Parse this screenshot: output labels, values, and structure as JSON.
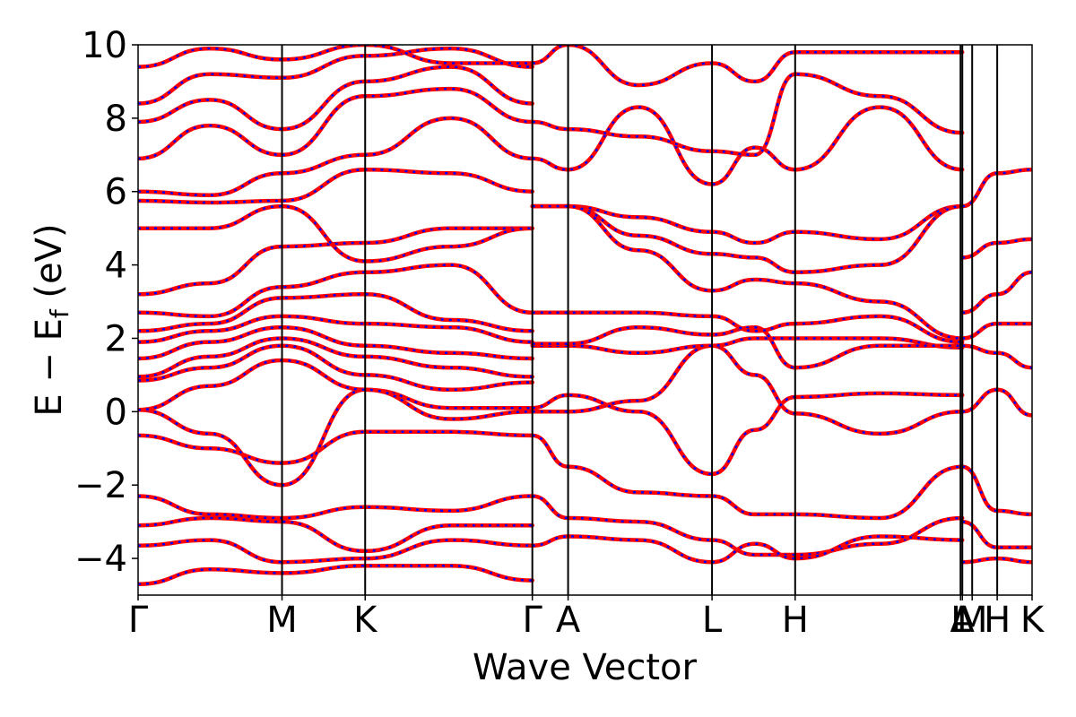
{
  "chart_data": {
    "type": "line",
    "title": "",
    "xlabel": "Wave Vector",
    "ylabel": "E − E",
    "ylabel_subscript": "f",
    "ylabel_unit": " (eV)",
    "ylim": [
      -5,
      10
    ],
    "yticks": [
      10,
      8,
      6,
      4,
      2,
      0,
      -2,
      -4
    ],
    "ytick_labels": [
      "10",
      "8",
      "6",
      "4",
      "2",
      "0",
      "−2",
      "−4"
    ],
    "xlim": [
      0,
      1
    ],
    "high_symmetry_points": [
      {
        "label": "Γ",
        "x": 0.0
      },
      {
        "label": "M",
        "x": 0.161
      },
      {
        "label": "K",
        "x": 0.254
      },
      {
        "label": "Γ",
        "x": 0.441
      },
      {
        "label": "A",
        "x": 0.481
      },
      {
        "label": "L",
        "x": 0.642
      },
      {
        "label": "H",
        "x": 0.735
      },
      {
        "label": "A",
        "x": 0.922
      },
      {
        "label": "L",
        "x": 0.92
      },
      {
        "label": "M",
        "x": 0.933
      },
      {
        "label": "H",
        "x": 0.961
      },
      {
        "label": "K",
        "x": 1.0
      }
    ],
    "grid": false,
    "legend": "none",
    "series_style": [
      {
        "color": "#ff0000",
        "style": "solid"
      },
      {
        "color": "#0000ff",
        "style": "dashed"
      }
    ],
    "bands": [
      [
        [
          0.0,
          -0.65
        ],
        [
          0.08,
          -1.0
        ],
        [
          0.161,
          -1.4
        ],
        [
          0.254,
          -0.55
        ],
        [
          0.35,
          -0.55
        ],
        [
          0.441,
          -0.65
        ]
      ],
      [
        [
          0.0,
          0.05
        ],
        [
          0.08,
          -0.6
        ],
        [
          0.161,
          -2.0
        ],
        [
          0.254,
          0.6
        ],
        [
          0.35,
          0.1
        ],
        [
          0.441,
          0.1
        ]
      ],
      [
        [
          0.0,
          0.05
        ],
        [
          0.08,
          0.7
        ],
        [
          0.161,
          1.4
        ],
        [
          0.254,
          0.6
        ],
        [
          0.35,
          -0.2
        ],
        [
          0.441,
          0.0
        ]
      ],
      [
        [
          0.0,
          0.85
        ],
        [
          0.08,
          1.2
        ],
        [
          0.161,
          1.8
        ],
        [
          0.254,
          1.0
        ],
        [
          0.35,
          0.6
        ],
        [
          0.441,
          0.8
        ]
      ],
      [
        [
          0.0,
          0.95
        ],
        [
          0.08,
          1.5
        ],
        [
          0.161,
          2.0
        ],
        [
          0.254,
          1.5
        ],
        [
          0.35,
          1.2
        ],
        [
          0.441,
          0.95
        ]
      ],
      [
        [
          0.0,
          1.45
        ],
        [
          0.08,
          1.9
        ],
        [
          0.161,
          2.3
        ],
        [
          0.254,
          1.8
        ],
        [
          0.35,
          1.6
        ],
        [
          0.441,
          1.45
        ]
      ],
      [
        [
          0.0,
          1.9
        ],
        [
          0.08,
          2.2
        ],
        [
          0.161,
          2.6
        ],
        [
          0.254,
          2.4
        ],
        [
          0.35,
          2.3
        ],
        [
          0.441,
          1.9
        ]
      ],
      [
        [
          0.0,
          2.2
        ],
        [
          0.08,
          2.4
        ],
        [
          0.161,
          3.1
        ],
        [
          0.254,
          3.2
        ],
        [
          0.35,
          2.5
        ],
        [
          0.441,
          2.2
        ]
      ],
      [
        [
          0.0,
          2.7
        ],
        [
          0.08,
          2.6
        ],
        [
          0.161,
          3.4
        ],
        [
          0.254,
          3.8
        ],
        [
          0.35,
          4.0
        ],
        [
          0.441,
          2.7
        ]
      ],
      [
        [
          0.0,
          3.2
        ],
        [
          0.08,
          3.5
        ],
        [
          0.161,
          4.5
        ],
        [
          0.254,
          4.6
        ],
        [
          0.35,
          5.0
        ],
        [
          0.441,
          5.0
        ]
      ],
      [
        [
          0.0,
          5.0
        ],
        [
          0.08,
          5.0
        ],
        [
          0.161,
          5.6
        ],
        [
          0.254,
          4.1
        ],
        [
          0.35,
          4.5
        ],
        [
          0.441,
          5.0
        ]
      ],
      [
        [
          0.0,
          5.75
        ],
        [
          0.08,
          5.7
        ],
        [
          0.161,
          5.75
        ],
        [
          0.254,
          6.6
        ],
        [
          0.35,
          6.5
        ],
        [
          0.441,
          6.0
        ]
      ],
      [
        [
          0.0,
          6.0
        ],
        [
          0.08,
          5.9
        ],
        [
          0.161,
          6.5
        ],
        [
          0.254,
          7.0
        ],
        [
          0.35,
          8.0
        ],
        [
          0.441,
          6.9
        ]
      ],
      [
        [
          0.0,
          6.9
        ],
        [
          0.08,
          7.8
        ],
        [
          0.161,
          7.0
        ],
        [
          0.254,
          8.6
        ],
        [
          0.35,
          8.8
        ],
        [
          0.441,
          7.9
        ]
      ],
      [
        [
          0.0,
          7.9
        ],
        [
          0.08,
          8.5
        ],
        [
          0.161,
          7.7
        ],
        [
          0.254,
          9.0
        ],
        [
          0.35,
          9.4
        ],
        [
          0.441,
          8.4
        ]
      ],
      [
        [
          0.0,
          8.4
        ],
        [
          0.08,
          9.2
        ],
        [
          0.161,
          9.1
        ],
        [
          0.254,
          9.7
        ],
        [
          0.35,
          9.9
        ],
        [
          0.441,
          9.4
        ]
      ],
      [
        [
          0.0,
          9.4
        ],
        [
          0.08,
          9.9
        ],
        [
          0.161,
          9.6
        ],
        [
          0.254,
          10.0
        ],
        [
          0.35,
          9.5
        ],
        [
          0.441,
          9.5
        ]
      ],
      [
        [
          0.0,
          -2.3
        ],
        [
          0.08,
          -2.8
        ],
        [
          0.161,
          -2.9
        ],
        [
          0.254,
          -2.6
        ],
        [
          0.35,
          -2.7
        ],
        [
          0.441,
          -2.3
        ]
      ],
      [
        [
          0.0,
          -3.1
        ],
        [
          0.08,
          -2.9
        ],
        [
          0.161,
          -3.0
        ],
        [
          0.254,
          -3.8
        ],
        [
          0.35,
          -3.1
        ],
        [
          0.441,
          -3.1
        ]
      ],
      [
        [
          0.0,
          -3.65
        ],
        [
          0.08,
          -3.5
        ],
        [
          0.161,
          -4.1
        ],
        [
          0.254,
          -4.0
        ],
        [
          0.35,
          -3.5
        ],
        [
          0.441,
          -3.65
        ]
      ],
      [
        [
          0.0,
          -4.7
        ],
        [
          0.08,
          -4.3
        ],
        [
          0.161,
          -4.4
        ],
        [
          0.254,
          -4.2
        ],
        [
          0.35,
          -4.2
        ],
        [
          0.441,
          -4.6
        ]
      ],
      [
        [
          0.441,
          0.0
        ],
        [
          0.481,
          0.0
        ],
        [
          0.56,
          0.3
        ],
        [
          0.642,
          1.8
        ],
        [
          0.69,
          1.0
        ],
        [
          0.735,
          -0.05
        ],
        [
          0.83,
          -0.6
        ],
        [
          0.922,
          0.0
        ]
      ],
      [
        [
          0.441,
          0.1
        ],
        [
          0.481,
          0.45
        ],
        [
          0.56,
          0.0
        ],
        [
          0.642,
          -1.7
        ],
        [
          0.69,
          -0.5
        ],
        [
          0.735,
          0.4
        ],
        [
          0.83,
          0.5
        ],
        [
          0.922,
          0.45
        ]
      ],
      [
        [
          0.441,
          1.8
        ],
        [
          0.481,
          1.8
        ],
        [
          0.56,
          1.6
        ],
        [
          0.642,
          1.8
        ],
        [
          0.69,
          2.0
        ],
        [
          0.735,
          2.0
        ],
        [
          0.83,
          2.0
        ],
        [
          0.922,
          1.75
        ]
      ],
      [
        [
          0.441,
          1.85
        ],
        [
          0.481,
          1.85
        ],
        [
          0.56,
          2.3
        ],
        [
          0.642,
          2.1
        ],
        [
          0.69,
          2.3
        ],
        [
          0.735,
          1.2
        ],
        [
          0.83,
          1.8
        ],
        [
          0.922,
          1.8
        ]
      ],
      [
        [
          0.441,
          2.7
        ],
        [
          0.481,
          2.7
        ],
        [
          0.56,
          2.7
        ],
        [
          0.642,
          2.6
        ],
        [
          0.69,
          2.2
        ],
        [
          0.735,
          2.4
        ],
        [
          0.83,
          2.6
        ],
        [
          0.922,
          1.9
        ]
      ],
      [
        [
          0.441,
          5.6
        ],
        [
          0.481,
          5.6
        ],
        [
          0.56,
          5.3
        ],
        [
          0.642,
          4.9
        ],
        [
          0.69,
          4.6
        ],
        [
          0.735,
          4.9
        ],
        [
          0.83,
          4.7
        ],
        [
          0.922,
          5.6
        ]
      ],
      [
        [
          0.441,
          5.6
        ],
        [
          0.481,
          5.6
        ],
        [
          0.56,
          4.8
        ],
        [
          0.642,
          4.3
        ],
        [
          0.69,
          4.2
        ],
        [
          0.735,
          3.8
        ],
        [
          0.83,
          4.0
        ],
        [
          0.922,
          5.6
        ]
      ],
      [
        [
          0.441,
          5.6
        ],
        [
          0.481,
          5.6
        ],
        [
          0.56,
          4.4
        ],
        [
          0.642,
          3.3
        ],
        [
          0.69,
          3.6
        ],
        [
          0.735,
          3.5
        ],
        [
          0.83,
          3.0
        ],
        [
          0.922,
          2.0
        ]
      ],
      [
        [
          0.441,
          6.9
        ],
        [
          0.481,
          6.6
        ],
        [
          0.56,
          8.3
        ],
        [
          0.642,
          6.2
        ],
        [
          0.69,
          7.2
        ],
        [
          0.735,
          6.6
        ],
        [
          0.83,
          8.3
        ],
        [
          0.922,
          6.6
        ]
      ],
      [
        [
          0.441,
          7.9
        ],
        [
          0.481,
          7.7
        ],
        [
          0.56,
          7.5
        ],
        [
          0.642,
          7.1
        ],
        [
          0.69,
          7.0
        ],
        [
          0.735,
          9.2
        ],
        [
          0.83,
          8.6
        ],
        [
          0.922,
          7.6
        ]
      ],
      [
        [
          0.441,
          9.5
        ],
        [
          0.481,
          10.0
        ],
        [
          0.56,
          8.9
        ],
        [
          0.642,
          9.5
        ],
        [
          0.69,
          9.0
        ],
        [
          0.735,
          9.8
        ],
        [
          0.83,
          9.8
        ],
        [
          0.922,
          9.8
        ]
      ],
      [
        [
          0.441,
          -0.65
        ],
        [
          0.481,
          -1.5
        ],
        [
          0.56,
          -2.2
        ],
        [
          0.642,
          -2.3
        ],
        [
          0.69,
          -2.8
        ],
        [
          0.735,
          -2.8
        ],
        [
          0.83,
          -2.9
        ],
        [
          0.922,
          -1.5
        ]
      ],
      [
        [
          0.441,
          -2.3
        ],
        [
          0.481,
          -2.9
        ],
        [
          0.56,
          -3.0
        ],
        [
          0.642,
          -3.5
        ],
        [
          0.69,
          -3.9
        ],
        [
          0.735,
          -3.9
        ],
        [
          0.83,
          -3.6
        ],
        [
          0.922,
          -2.9
        ]
      ],
      [
        [
          0.441,
          -3.65
        ],
        [
          0.481,
          -3.4
        ],
        [
          0.56,
          -3.5
        ],
        [
          0.642,
          -4.1
        ],
        [
          0.69,
          -3.6
        ],
        [
          0.735,
          -4.0
        ],
        [
          0.83,
          -3.4
        ],
        [
          0.922,
          -3.5
        ]
      ],
      [
        [
          0.922,
          0.0
        ],
        [
          0.961,
          0.6
        ],
        [
          1.0,
          -0.1
        ]
      ],
      [
        [
          0.922,
          1.8
        ],
        [
          0.961,
          1.6
        ],
        [
          1.0,
          1.2
        ]
      ],
      [
        [
          0.922,
          2.0
        ],
        [
          0.961,
          2.4
        ],
        [
          1.0,
          2.4
        ]
      ],
      [
        [
          0.922,
          2.7
        ],
        [
          0.961,
          3.2
        ],
        [
          1.0,
          3.8
        ]
      ],
      [
        [
          0.922,
          4.2
        ],
        [
          0.961,
          4.6
        ],
        [
          1.0,
          4.7
        ]
      ],
      [
        [
          0.922,
          5.6
        ],
        [
          0.961,
          6.5
        ],
        [
          1.0,
          6.6
        ]
      ],
      [
        [
          0.922,
          -1.5
        ],
        [
          0.961,
          -2.7
        ],
        [
          1.0,
          -2.8
        ]
      ],
      [
        [
          0.922,
          -3.0
        ],
        [
          0.961,
          -3.7
        ],
        [
          1.0,
          -3.7
        ]
      ],
      [
        [
          0.922,
          -4.1
        ],
        [
          0.961,
          -4.0
        ],
        [
          1.0,
          -4.1
        ]
      ]
    ]
  }
}
